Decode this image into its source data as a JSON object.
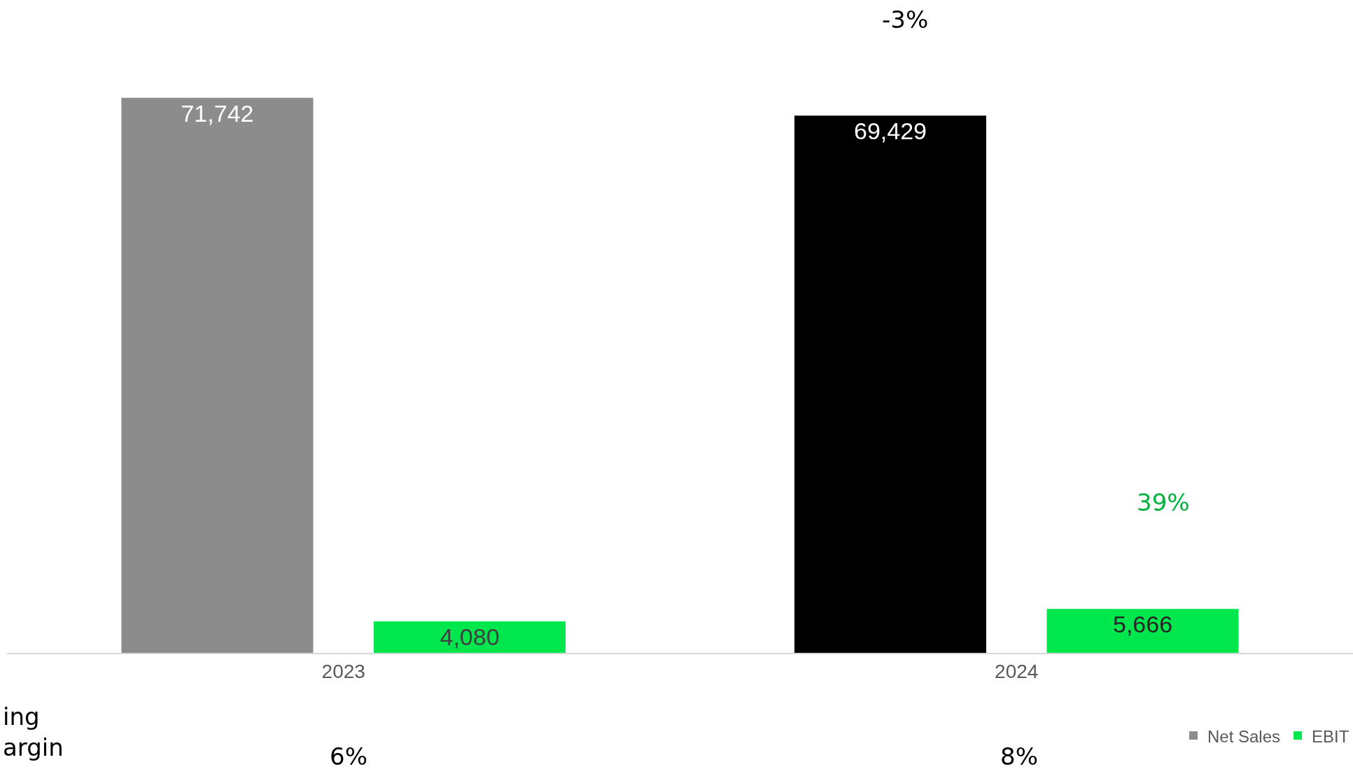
{
  "chart_data": {
    "type": "bar",
    "categories": [
      "2023",
      "2024"
    ],
    "series": [
      {
        "name": "Net Sales",
        "colors": [
          "#8c8c8c",
          "#000000"
        ],
        "values": [
          71742,
          69429
        ],
        "value_labels": [
          "71,742",
          "69,429"
        ]
      },
      {
        "name": "EBIT",
        "color": "#00e64d",
        "values": [
          4080,
          5666
        ],
        "value_labels": [
          "4,080",
          "5,666"
        ]
      }
    ],
    "data_labels": true,
    "legend": "bottom right",
    "annotations": [
      "-3%",
      "39%",
      "6%",
      "8%",
      "ing\nargin"
    ]
  }
}
